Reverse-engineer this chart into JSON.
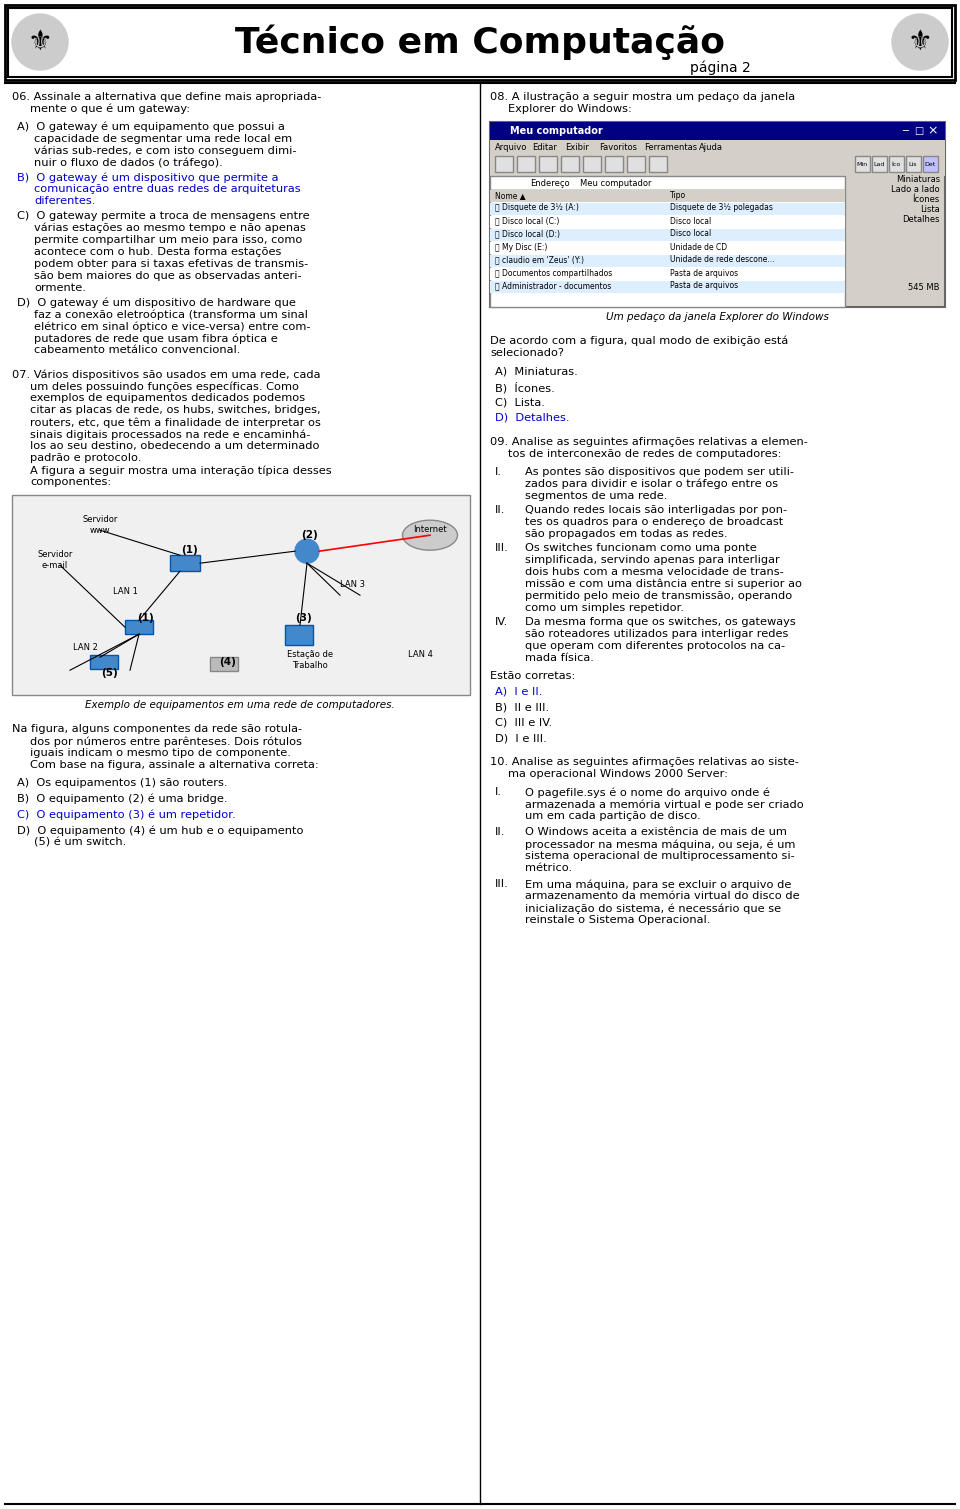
{
  "title": "Técnico em Computação",
  "subtitle": "página 2",
  "bg_color": "#ffffff",
  "header_border_color": "#000000",
  "title_color": "#000000",
  "subtitle_color": "#000000",
  "blue_color": "#0000cc",
  "black_color": "#000000",
  "q06_text": "06. Assinale a alternativa que define mais apropriada-\n    mente o que é um gateway:",
  "q06_A": "A)  O gateway é um equipamento que possui a\n    capacidade de segmentar uma rede local em\n    várias sub-redes, e com isto conseguem dimi-\n    nuir o fluxo de dados (o tráfego).",
  "q06_B": "B)  O gateway é um dispositivo que permite a\n    comunicação entre duas redes de arquiteturas\n    diferentes.",
  "q06_C": "C)  O gateway permite a troca de mensagens entre\n    várias estações ao mesmo tempo e não apenas\n    permite compartilhar um meio para isso, como\n    acontece com o hub. Desta forma estações\n    podem obter para si taxas efetivas de transmis-\n    são bem maiores do que as observadas anteri-\n    ormente.",
  "q06_D": "D)  O gateway é um dispositivo de hardware que\n    faz a conexão eletroóptica (transforma um sinal\n    elétrico em sinal óptico e vice-versa) entre com-\n    putadores de rede que usam fibra óptica e\n    cabeamento metálico convencional.",
  "q07_text": "07. Vários dispositivos são usados em uma rede, cada\n    um deles possuindo funções específicas. Como\n    exemplos de equipamentos dedicados podemos\n    citar as placas de rede, os hubs, switches, bridges,\n    routers, etc, que têm a finalidade de interpretar os\n    sinais digitais processados na rede e encaminhá-\n    los ao seu destino, obedecendo a um determinado\n    padrão e protocolo.\n    A figura a seguir mostra uma interação típica desses\n    componentes:",
  "q07_fig_caption": "Exemplo de equipamentos em uma rede de computadores.",
  "q07_Na": "Na figura, alguns componentes da rede são rotula-\n    dos por números entre parênteses. Dois rótulos\n    iguais indicam o mesmo tipo de componente.\n    Com base na figura, assinale a alternativa correta:",
  "q07_A": "A)  Os equipamentos (1) são routers.",
  "q07_B": "B)  O equipamento (2) é uma bridge.",
  "q07_C": "C)  O equipamento (3) é um repetidor.",
  "q07_D": "D)  O equipamento (4) é um hub e o equipamento\n    (5) é um switch.",
  "q08_text": "08. A ilustração a seguir mostra um pedaço da janela\n    Explorer do Windows:",
  "q08_fig_caption": "Um pedaço da janela Explorer do Windows",
  "q08_question": "De acordo com a figura, qual modo de exibição está\n    selecionado?",
  "q08_A": "A)  Miniaturas.",
  "q08_B": "B)  Ícones.",
  "q08_C": "C)  Lista.",
  "q08_D": "D)  Detalhes.",
  "q09_text": "09. Analise as seguintes afirmações relativas a elemen-\n    tos de interconexão de redes de computadores:",
  "q09_I": "I.   As pontes são dispositivos que podem ser utili-\n     zados para dividir e isolar o tráfego entre os\n     segmentos de uma rede.",
  "q09_II": "II.  Quando redes locais são interligadas por pon-\n     tes os quadros para o endereço de broadcast\n     são propagados em todas as redes.",
  "q09_III": "III. Os switches funcionam como uma ponte\n     simplificada, servindo apenas para interligar\n     dois hubs com a mesma velocidade de trans-\n     missão e com uma distância entre si superior ao\n     permitido pelo meio de transmissão, operando\n     como um simples repetidor.",
  "q09_IV": "IV. Da mesma forma que os switches, os gateways\n     são roteadores utilizados para interligar redes\n     que operam com diferentes protocolos na ca-\n     mada física.",
  "q09_correct": "Estão corretas:",
  "q09_A": "A)  I e II.",
  "q09_B": "B)  II e III.",
  "q09_C": "C)  III e IV.",
  "q09_D": "D)  I e III.",
  "q10_text": "10. Analise as seguintes afirmações relativas ao siste-\n    ma operacional Windows 2000 Server:",
  "q10_I": "I.   O pagefile.sys é o nome do arquivo onde é\n     armazenada a memória virtual e pode ser criado\n     um em cada partição de disco.",
  "q10_II": "II.  O Windows aceita a existência de mais de um\n     processador na mesma máquina, ou seja, é um\n     sistema operacional de multiprocessamento si-\n     métrico.",
  "q10_III": "III. Em uma máquina, para se excluir o arquivo de\n     armazenamento da memória virtual do disco de\n     inicialização do sistema, é necessário que se\n     reinstale o Sistema Operacional."
}
